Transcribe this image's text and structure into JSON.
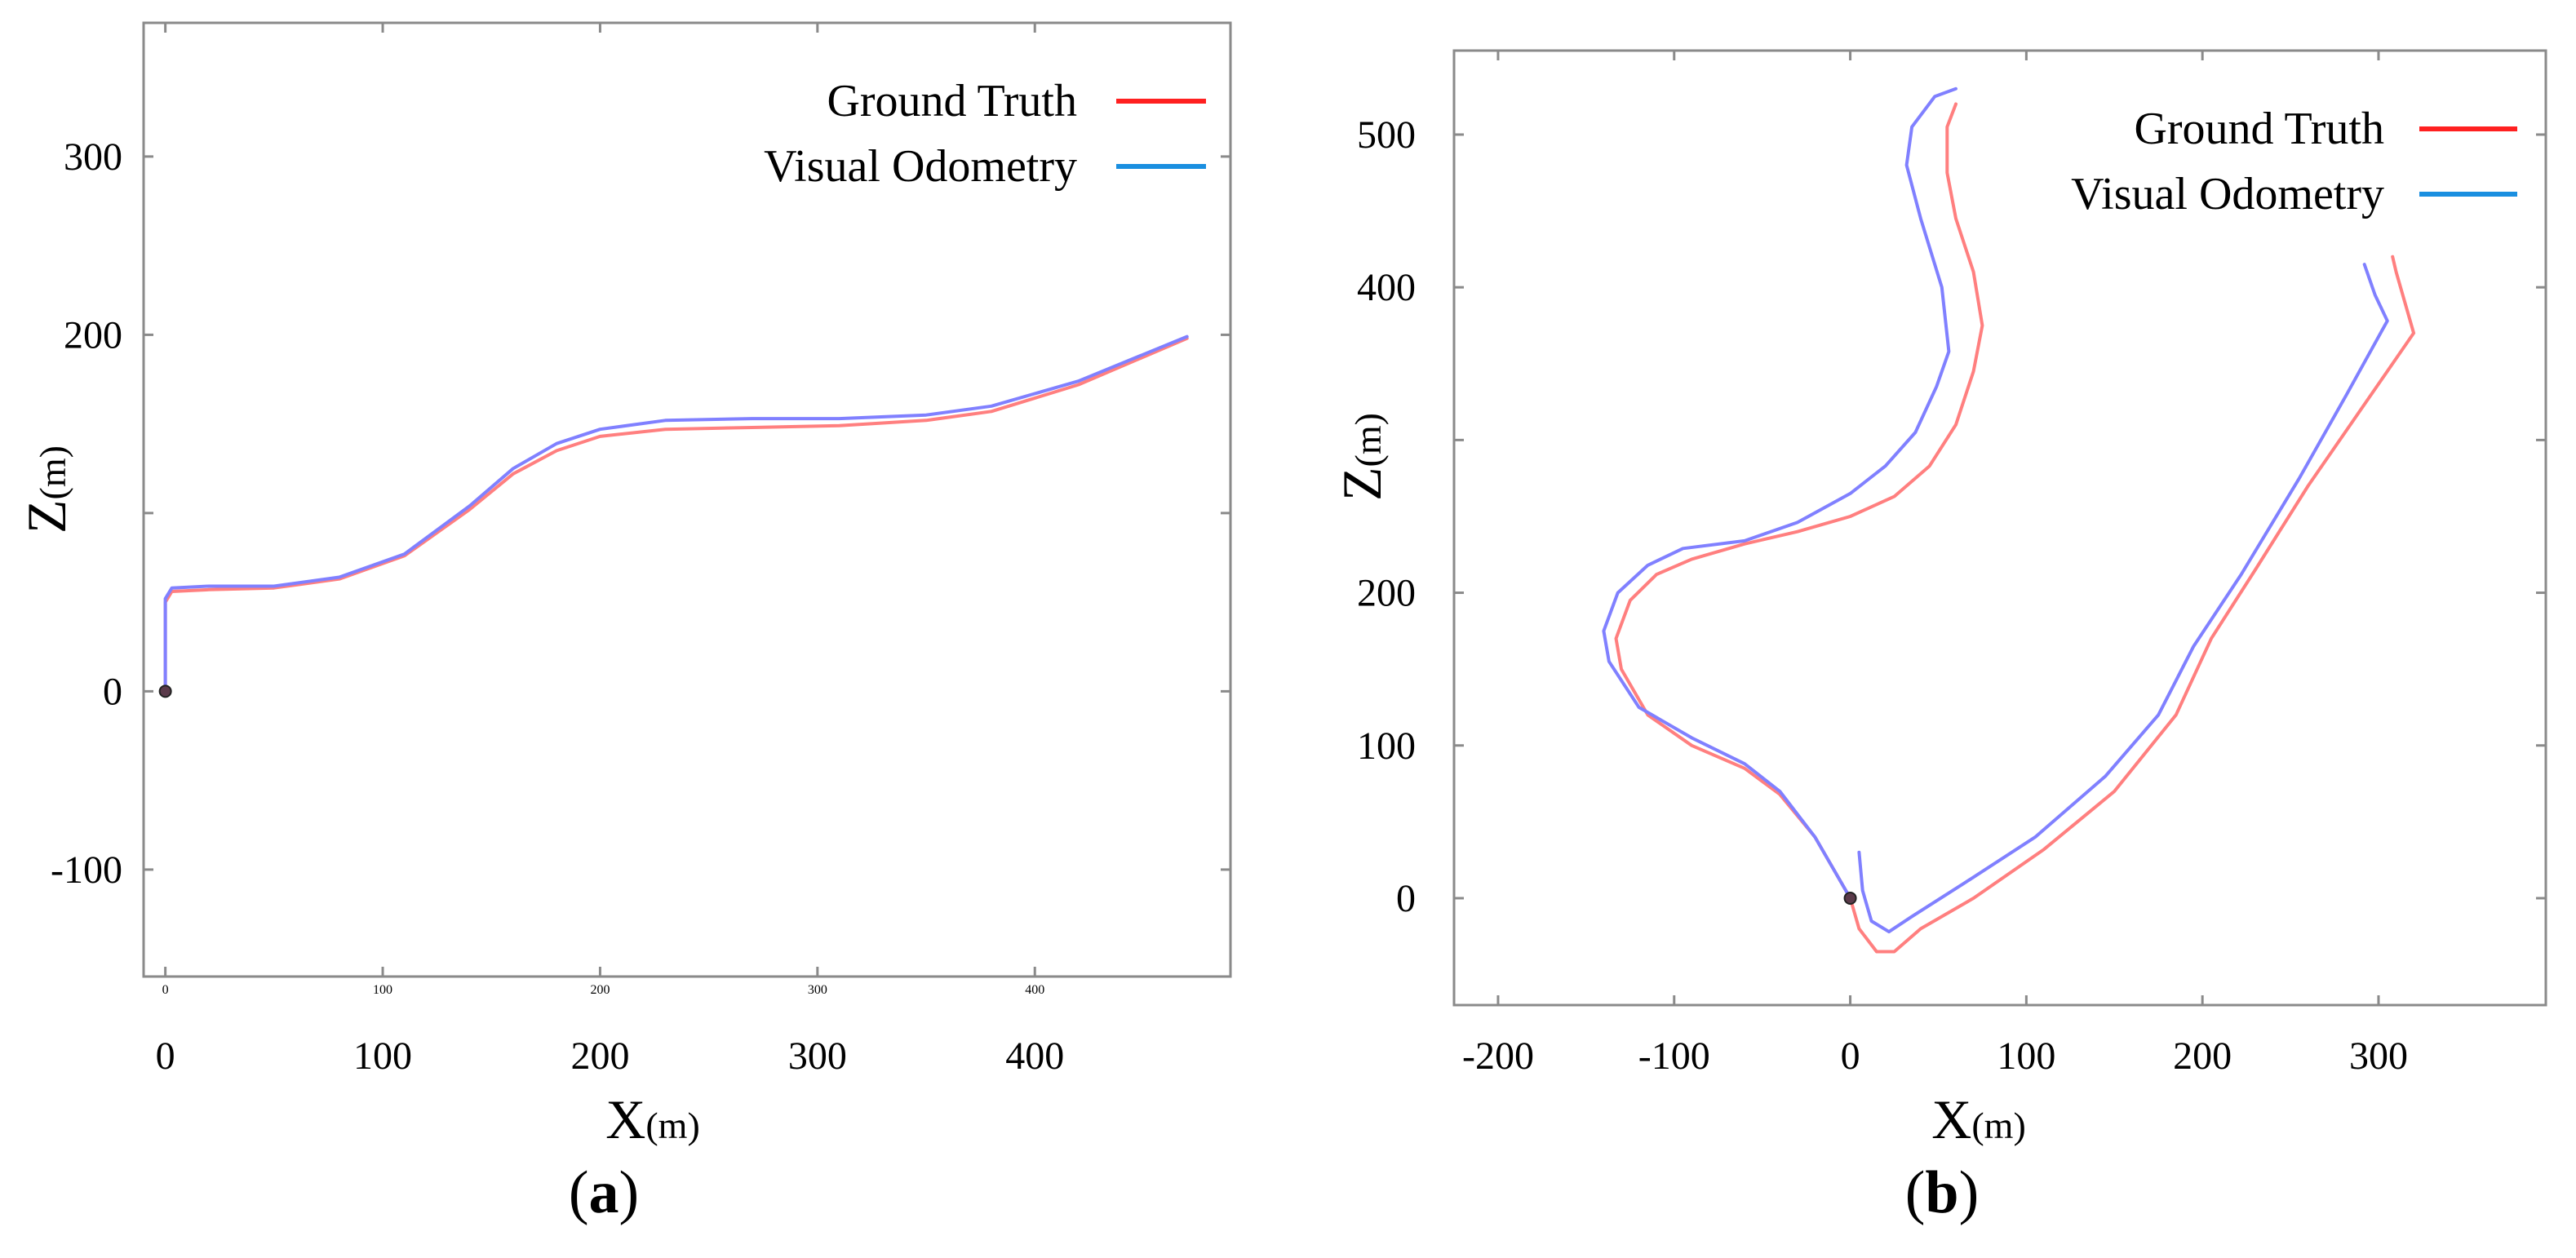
{
  "chart_data": [
    {
      "type": "line",
      "panel_label": "a",
      "xlabel": "X",
      "xlabel_unit": "(m)",
      "ylabel": "Z",
      "ylabel_unit": "(m)",
      "xlim": [
        -10,
        490
      ],
      "ylim": [
        -160,
        375
      ],
      "x_ticks": [
        0,
        100,
        200,
        300,
        400
      ],
      "x_tick_labels": [
        "0",
        "100",
        "200",
        "300",
        "400"
      ],
      "x_minor_tick_labels": [
        "0",
        "100",
        "200",
        "300",
        "400"
      ],
      "y_ticks": [
        300,
        200,
        0,
        -100
      ],
      "y_tick_labels": [
        "300",
        "200",
        "0",
        "-100"
      ],
      "legend": {
        "position": "top-right",
        "entries": [
          "Ground Truth",
          "Visual Odometry"
        ]
      },
      "start_marker": [
        0,
        0
      ],
      "series": [
        {
          "name": "Ground Truth",
          "color": "#ff7f7f",
          "legend_color": "#ff2020",
          "points": [
            [
              0,
              0
            ],
            [
              0,
              50
            ],
            [
              3,
              56
            ],
            [
              20,
              57
            ],
            [
              50,
              58
            ],
            [
              80,
              63
            ],
            [
              110,
              76
            ],
            [
              140,
              102
            ],
            [
              160,
              122
            ],
            [
              180,
              135
            ],
            [
              200,
              143
            ],
            [
              230,
              147
            ],
            [
              270,
              148
            ],
            [
              310,
              149
            ],
            [
              350,
              152
            ],
            [
              380,
              157
            ],
            [
              420,
              172
            ],
            [
              470,
              198
            ]
          ]
        },
        {
          "name": "Visual Odometry",
          "color": "#8080ff",
          "legend_color": "#1a8fe0",
          "points": [
            [
              0,
              0
            ],
            [
              0,
              52
            ],
            [
              3,
              58
            ],
            [
              20,
              59
            ],
            [
              50,
              59
            ],
            [
              80,
              64
            ],
            [
              110,
              77
            ],
            [
              140,
              104
            ],
            [
              160,
              125
            ],
            [
              180,
              139
            ],
            [
              200,
              147
            ],
            [
              230,
              152
            ],
            [
              270,
              153
            ],
            [
              310,
              153
            ],
            [
              350,
              155
            ],
            [
              380,
              160
            ],
            [
              420,
              174
            ],
            [
              470,
              199
            ]
          ]
        }
      ]
    },
    {
      "type": "line",
      "panel_label": "b",
      "xlabel": "X",
      "xlabel_unit": "(m)",
      "ylabel": "Z",
      "ylabel_unit": "(m)",
      "xlim": [
        -225,
        395
      ],
      "ylim": [
        -70,
        555
      ],
      "x_ticks": [
        -200,
        -100,
        0,
        100,
        200,
        300
      ],
      "x_tick_labels": [
        "-200",
        "-100",
        "0",
        "100",
        "200",
        "300"
      ],
      "y_ticks": [
        500,
        400,
        200,
        100,
        0
      ],
      "y_tick_labels": [
        "500",
        "400",
        "200",
        "100",
        "0"
      ],
      "legend": {
        "position": "top-right",
        "entries": [
          "Ground Truth",
          "Visual Odometry"
        ]
      },
      "start_marker": [
        0,
        0
      ],
      "series": [
        {
          "name": "Ground Truth",
          "color": "#ff7f7f",
          "legend_color": "#ff2020",
          "points": [
            [
              0,
              0
            ],
            [
              -5,
              10
            ],
            [
              -20,
              40
            ],
            [
              -40,
              68
            ],
            [
              -60,
              85
            ],
            [
              -90,
              100
            ],
            [
              -115,
              120
            ],
            [
              -130,
              150
            ],
            [
              -133,
              170
            ],
            [
              -125,
              195
            ],
            [
              -110,
              212
            ],
            [
              -90,
              222
            ],
            [
              -60,
              232
            ],
            [
              -30,
              240
            ],
            [
              0,
              250
            ],
            [
              25,
              263
            ],
            [
              45,
              283
            ],
            [
              60,
              310
            ],
            [
              70,
              345
            ],
            [
              75,
              375
            ],
            [
              70,
              410
            ],
            [
              60,
              445
            ],
            [
              55,
              475
            ],
            [
              55,
              505
            ],
            [
              60,
              520
            ]
          ]
        },
        {
          "name": "Visual Odometry",
          "color": "#8080ff",
          "legend_color": "#1a8fe0",
          "points": [
            [
              0,
              0
            ],
            [
              -5,
              10
            ],
            [
              -20,
              40
            ],
            [
              -40,
              70
            ],
            [
              -60,
              88
            ],
            [
              -90,
              105
            ],
            [
              -120,
              125
            ],
            [
              -137,
              155
            ],
            [
              -140,
              175
            ],
            [
              -132,
              200
            ],
            [
              -115,
              218
            ],
            [
              -95,
              229
            ],
            [
              -60,
              234
            ],
            [
              -30,
              246
            ],
            [
              0,
              265
            ],
            [
              20,
              283
            ],
            [
              37,
              305
            ],
            [
              49,
              335
            ],
            [
              56,
              358
            ],
            [
              52,
              400
            ],
            [
              40,
              445
            ],
            [
              32,
              480
            ],
            [
              35,
              505
            ],
            [
              48,
              525
            ],
            [
              60,
              530
            ]
          ]
        },
        {
          "name": "Ground Truth",
          "color": "#ff7f7f",
          "legend_color": "#ff2020",
          "points": [
            [
              0,
              0
            ],
            [
              5,
              -20
            ],
            [
              15,
              -35
            ],
            [
              25,
              -35
            ],
            [
              40,
              -20
            ],
            [
              70,
              0
            ],
            [
              110,
              32
            ],
            [
              150,
              70
            ],
            [
              185,
              120
            ],
            [
              205,
              170
            ],
            [
              230,
              215
            ],
            [
              260,
              270
            ],
            [
              290,
              320
            ],
            [
              320,
              370
            ],
            [
              310,
              410
            ],
            [
              308,
              420
            ]
          ]
        },
        {
          "name": "Visual Odometry",
          "color": "#8080ff",
          "legend_color": "#1a8fe0",
          "points": [
            [
              5,
              30
            ],
            [
              7,
              5
            ],
            [
              12,
              -15
            ],
            [
              22,
              -22
            ],
            [
              35,
              -12
            ],
            [
              65,
              10
            ],
            [
              105,
              40
            ],
            [
              145,
              80
            ],
            [
              175,
              120
            ],
            [
              195,
              165
            ],
            [
              222,
              212
            ],
            [
              255,
              275
            ],
            [
              282,
              330
            ],
            [
              305,
              378
            ],
            [
              298,
              395
            ],
            [
              292,
              415
            ]
          ]
        }
      ]
    }
  ],
  "captions": {
    "a": {
      "open": "(",
      "letter": "a",
      "close": ")"
    },
    "b": {
      "open": "(",
      "letter": "b",
      "close": ")"
    }
  }
}
